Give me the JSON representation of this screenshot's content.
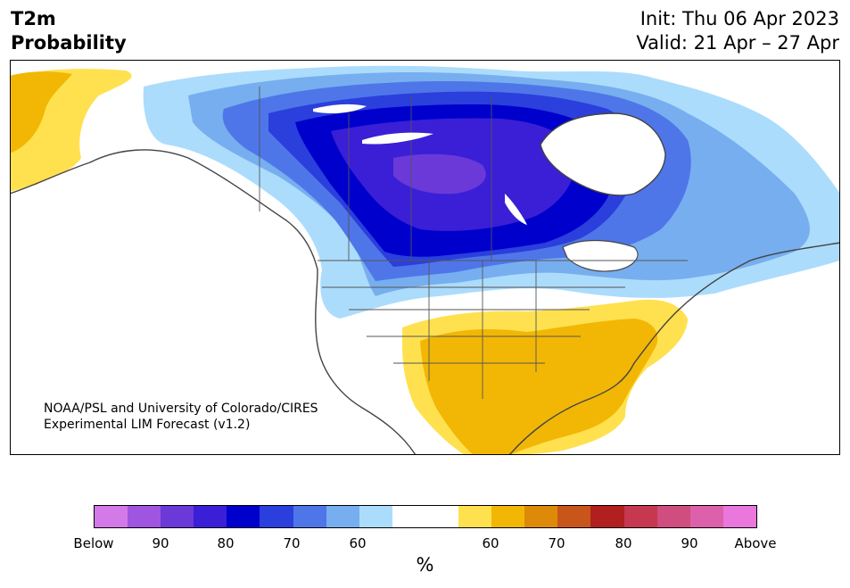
{
  "title": {
    "line1": "T2m",
    "line2": "Probability"
  },
  "init": {
    "line1": "Init: Thu 06 Apr 2023",
    "line2": "Valid: 21 Apr – 27 Apr"
  },
  "credit": {
    "line1": "NOAA/PSL and University of Colorado/CIRES",
    "line2": "Experimental LIM Forecast (v1.2)"
  },
  "legend": {
    "colors": [
      "#d37ae8",
      "#9f55e0",
      "#6a39d8",
      "#3a1fd6",
      "#0000cd",
      "#2a3fdc",
      "#4f76e8",
      "#77aeef",
      "#acdcfc",
      "#ffffff",
      "#ffe14f",
      "#f2b705",
      "#dd8a08",
      "#c8561a",
      "#b11f1f",
      "#c5384f",
      "#cf4e7f",
      "#dc61aa",
      "#e977dc"
    ],
    "ticks": [
      "Below",
      "90",
      "80",
      "70",
      "60",
      "60",
      "70",
      "80",
      "90",
      "Above"
    ],
    "unit": "%"
  }
}
